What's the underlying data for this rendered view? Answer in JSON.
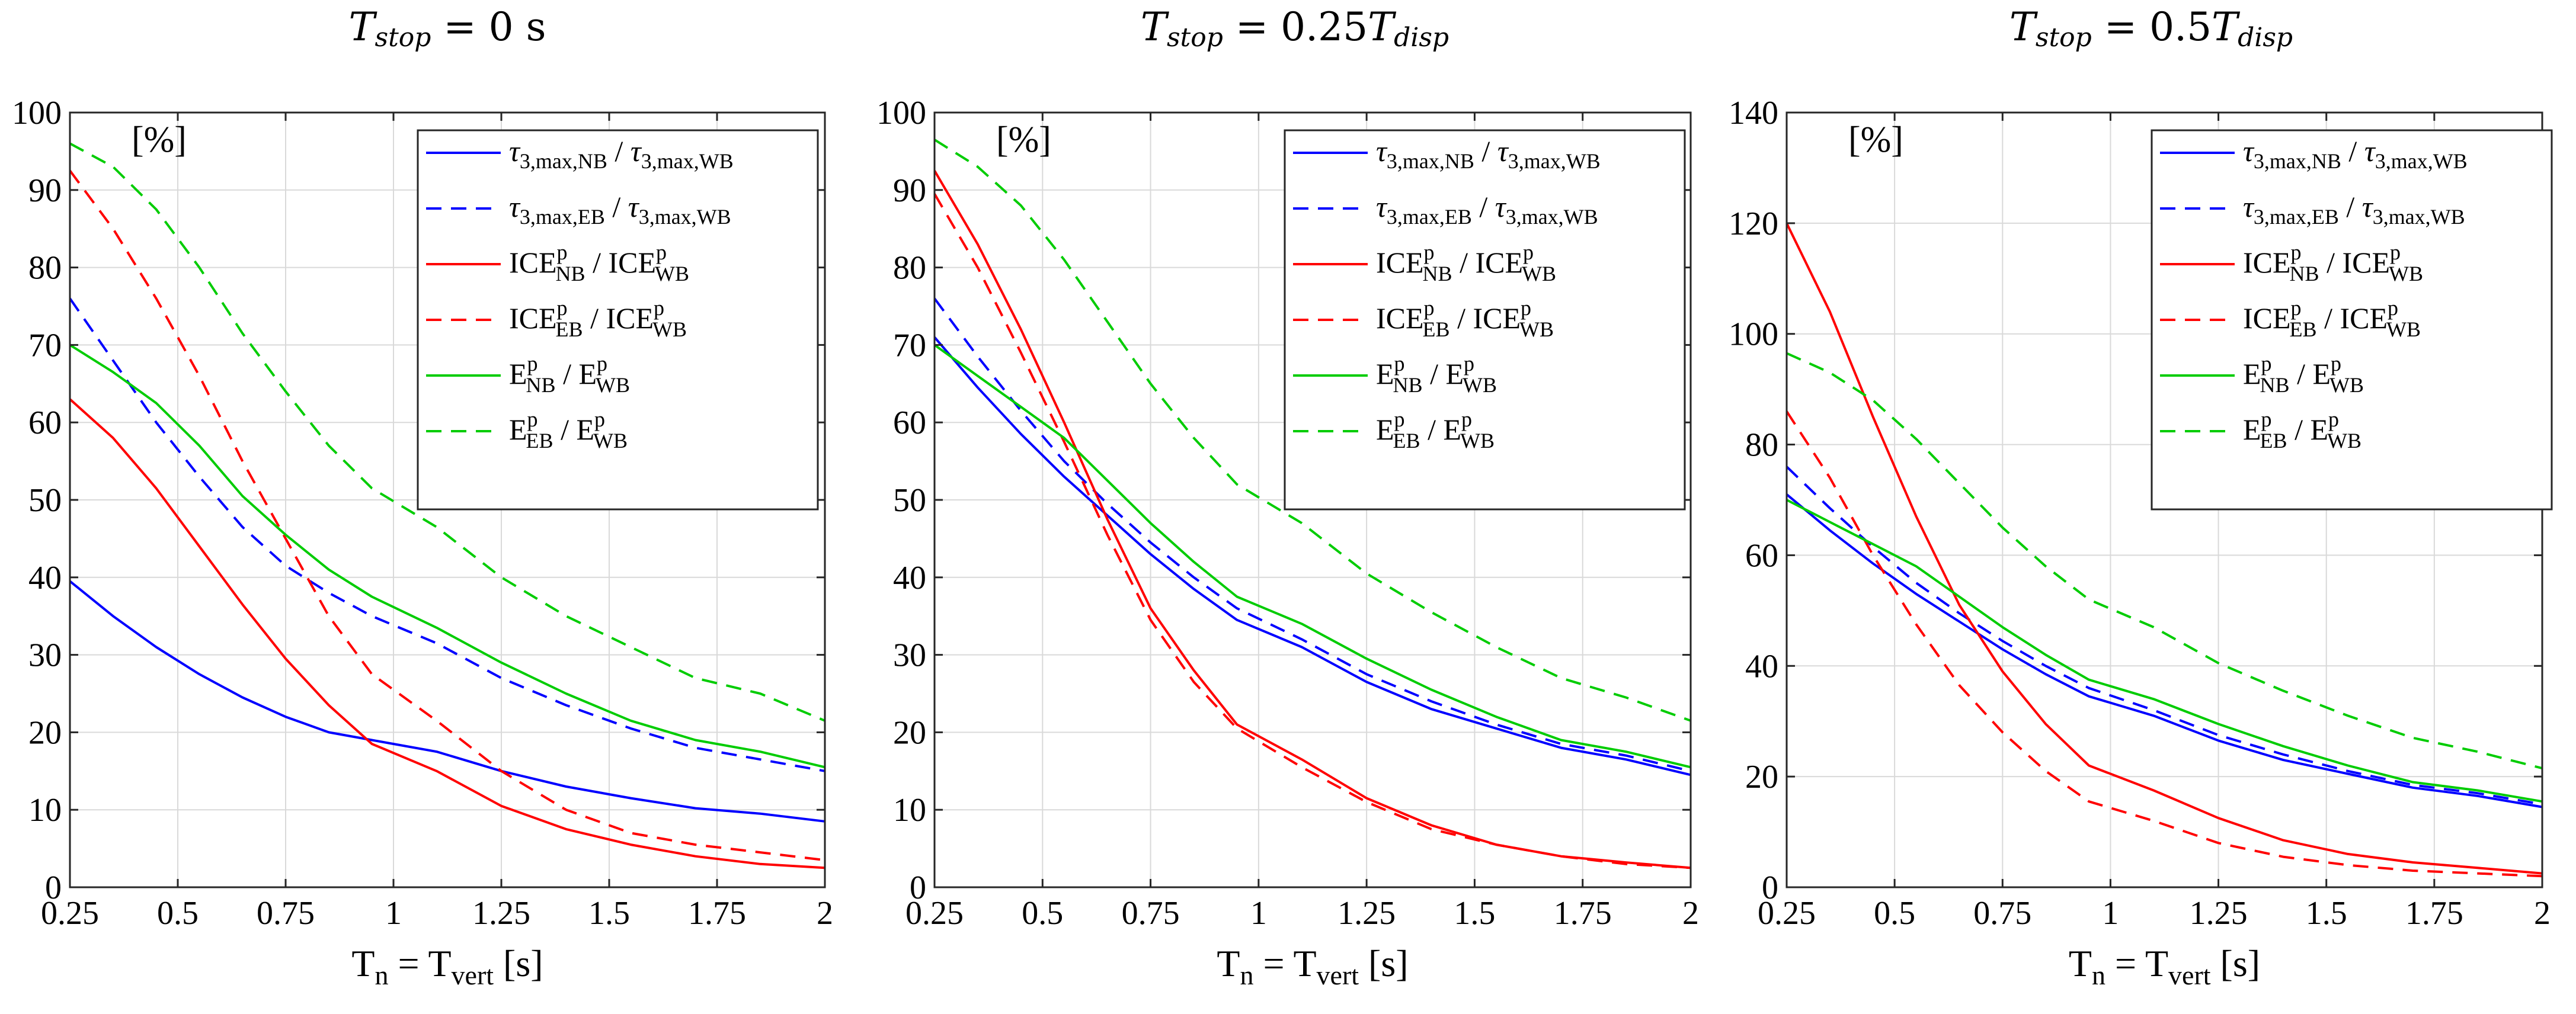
{
  "colors": {
    "blue": "#0000ff",
    "red": "#ff0000",
    "green": "#00cc00",
    "grid": "#d9d9d9",
    "axis": "#262626"
  },
  "panels": [
    {
      "title": {
        "lhs": "T",
        "lhs_sub": "stop",
        "rhs": "= 0 s",
        "rhs_var": "",
        "rhs_sub": ""
      },
      "unit_label": "[%]",
      "xlabel": {
        "t": "T",
        "n": "n",
        "eq": " = T",
        "vert": "vert",
        "unit": " [s]"
      }
    },
    {
      "title": {
        "lhs": "T",
        "lhs_sub": "stop",
        "rhs": "= 0.25",
        "rhs_var": "T",
        "rhs_sub": "disp"
      },
      "unit_label": "[%]",
      "xlabel": {
        "t": "T",
        "n": "n",
        "eq": " = T",
        "vert": "vert",
        "unit": " [s]"
      }
    },
    {
      "title": {
        "lhs": "T",
        "lhs_sub": "stop",
        "rhs": "= 0.5",
        "rhs_var": "T",
        "rhs_sub": "disp"
      },
      "unit_label": "[%]",
      "xlabel": {
        "t": "T",
        "n": "n",
        "eq": " = T",
        "vert": "vert",
        "unit": " [s]"
      }
    }
  ],
  "chart_data": [
    {
      "type": "line",
      "title": "Tstop = 0 s",
      "xlabel": "Tn = Tvert [s]",
      "ylabel": "[%]",
      "xlim": [
        0.25,
        2
      ],
      "ylim": [
        0,
        100
      ],
      "xticks": [
        0.25,
        0.5,
        0.75,
        1,
        1.25,
        1.5,
        1.75,
        2
      ],
      "xtick_labels": [
        "0.25",
        "0.5",
        "0.75",
        "1",
        "1.25",
        "1.5",
        "1.75",
        "2"
      ],
      "yticks": [
        0,
        10,
        20,
        30,
        40,
        50,
        60,
        70,
        80,
        90,
        100
      ],
      "ytick_labels": [
        "0",
        "10",
        "20",
        "30",
        "40",
        "50",
        "60",
        "70",
        "80",
        "90",
        "100"
      ],
      "legend_position": "top-right",
      "x": [
        0.25,
        0.35,
        0.45,
        0.55,
        0.65,
        0.75,
        0.85,
        0.95,
        1.1,
        1.25,
        1.4,
        1.55,
        1.7,
        1.85,
        2.0
      ],
      "series": [
        {
          "name": "τ3,max,NB / τ3,max,WB",
          "color": "#0000ff",
          "dash": "solid",
          "values": [
            39.5,
            35,
            31,
            27.5,
            24.5,
            22,
            20,
            19,
            17.5,
            15,
            13,
            11.5,
            10.2,
            9.5,
            8.5
          ]
        },
        {
          "name": "τ3,max,EB / τ3,max,WB",
          "color": "#0000ff",
          "dash": "dashed",
          "values": [
            76,
            68,
            60,
            53,
            46.5,
            41.5,
            38,
            35,
            31.5,
            27,
            23.5,
            20.5,
            18,
            16.5,
            15
          ]
        },
        {
          "name": "ICEp NB / ICEp WB",
          "color": "#ff0000",
          "dash": "solid",
          "values": [
            63,
            58,
            51.5,
            44,
            36.5,
            29.5,
            23.5,
            18.5,
            15,
            10.5,
            7.5,
            5.5,
            4,
            3,
            2.5
          ]
        },
        {
          "name": "ICEp EB / ICEp WB",
          "color": "#ff0000",
          "dash": "dashed",
          "values": [
            92.5,
            85,
            76,
            66,
            55,
            45,
            35,
            27.5,
            21.5,
            15,
            10,
            7,
            5.5,
            4.5,
            3.5
          ]
        },
        {
          "name": "Ep NB / Ep WB",
          "color": "#00cc00",
          "dash": "solid",
          "values": [
            70,
            66.5,
            62.5,
            57,
            50.5,
            45.5,
            41,
            37.5,
            33.5,
            29,
            25,
            21.5,
            19,
            17.5,
            15.5
          ]
        },
        {
          "name": "Ep EB / Ep WB",
          "color": "#00cc00",
          "dash": "dashed",
          "values": [
            96,
            93,
            87.5,
            80,
            71.5,
            64,
            57,
            51.5,
            46.5,
            40,
            35,
            31,
            27,
            25,
            21.5
          ]
        }
      ],
      "legend_labels": [
        {
          "main": "τ",
          "sub": "3,max,NB",
          "sup": "",
          "sep": " / ",
          "main2": "τ",
          "sub2": "3,max,WB",
          "sup2": ""
        },
        {
          "main": "τ",
          "sub": "3,max,EB",
          "sup": "",
          "sep": " / ",
          "main2": "τ",
          "sub2": "3,max,WB",
          "sup2": ""
        },
        {
          "main": "ICE",
          "sub": "NB",
          "sup": "p",
          "sep": " / ",
          "main2": "ICE",
          "sub2": "WB",
          "sup2": "p"
        },
        {
          "main": "ICE",
          "sub": "EB",
          "sup": "p",
          "sep": " / ",
          "main2": "ICE",
          "sub2": "WB",
          "sup2": "p"
        },
        {
          "main": "E",
          "sub": "NB",
          "sup": "p",
          "sep": " / ",
          "main2": "E",
          "sub2": "WB",
          "sup2": "p"
        },
        {
          "main": "E",
          "sub": "EB",
          "sup": "p",
          "sep": " / ",
          "main2": "E",
          "sub2": "WB",
          "sup2": "p"
        }
      ]
    },
    {
      "type": "line",
      "title": "Tstop = 0.25Tdisp",
      "xlabel": "Tn = Tvert [s]",
      "ylabel": "[%]",
      "xlim": [
        0.25,
        2
      ],
      "ylim": [
        0,
        100
      ],
      "xticks": [
        0.25,
        0.5,
        0.75,
        1,
        1.25,
        1.5,
        1.75,
        2
      ],
      "xtick_labels": [
        "0.25",
        "0.5",
        "0.75",
        "1",
        "1.25",
        "1.5",
        "1.75",
        "2"
      ],
      "yticks": [
        0,
        10,
        20,
        30,
        40,
        50,
        60,
        70,
        80,
        90,
        100
      ],
      "ytick_labels": [
        "0",
        "10",
        "20",
        "30",
        "40",
        "50",
        "60",
        "70",
        "80",
        "90",
        "100"
      ],
      "legend_position": "top-right",
      "x": [
        0.25,
        0.35,
        0.45,
        0.55,
        0.65,
        0.75,
        0.85,
        0.95,
        1.1,
        1.25,
        1.4,
        1.55,
        1.7,
        1.85,
        2.0
      ],
      "series": [
        {
          "name": "τ3,max,NB / τ3,max,WB",
          "color": "#0000ff",
          "dash": "solid",
          "values": [
            71,
            64.5,
            58.5,
            53,
            48,
            43,
            38.5,
            34.5,
            31,
            26.5,
            23,
            20.5,
            18,
            16.5,
            14.5
          ]
        },
        {
          "name": "τ3,max,EB / τ3,max,WB",
          "color": "#0000ff",
          "dash": "dashed",
          "values": [
            76,
            68.5,
            61.5,
            55,
            49.5,
            44.5,
            40,
            36,
            32,
            27.5,
            24,
            21,
            18.5,
            17,
            15
          ]
        },
        {
          "name": "ICEp NB / ICEp WB",
          "color": "#ff0000",
          "dash": "solid",
          "values": [
            92.5,
            83,
            72,
            60,
            47.5,
            36,
            28,
            21,
            16.5,
            11.5,
            8,
            5.5,
            4,
            3.2,
            2.5
          ]
        },
        {
          "name": "ICEp EB / ICEp WB",
          "color": "#ff0000",
          "dash": "dashed",
          "values": [
            89.5,
            80,
            69,
            57.5,
            45.5,
            34.5,
            26.5,
            20.5,
            15.5,
            11,
            7.5,
            5.5,
            4,
            3,
            2.5
          ]
        },
        {
          "name": "Ep NB / Ep WB",
          "color": "#00cc00",
          "dash": "solid",
          "values": [
            70,
            66,
            62,
            58,
            52.5,
            47,
            42,
            37.5,
            34,
            29.5,
            25.5,
            22,
            19,
            17.5,
            15.5
          ]
        },
        {
          "name": "Ep EB / Ep WB",
          "color": "#00cc00",
          "dash": "dashed",
          "values": [
            96.5,
            93,
            88,
            81,
            73,
            65,
            58,
            52,
            47,
            40.5,
            35.5,
            31,
            27,
            24.5,
            21.5
          ]
        }
      ],
      "legend_labels": [
        {
          "main": "τ",
          "sub": "3,max,NB",
          "sup": "",
          "sep": " / ",
          "main2": "τ",
          "sub2": "3,max,WB",
          "sup2": ""
        },
        {
          "main": "τ",
          "sub": "3,max,EB",
          "sup": "",
          "sep": " / ",
          "main2": "τ",
          "sub2": "3,max,WB",
          "sup2": ""
        },
        {
          "main": "ICE",
          "sub": "NB",
          "sup": "p",
          "sep": " / ",
          "main2": "ICE",
          "sub2": "WB",
          "sup2": "p"
        },
        {
          "main": "ICE",
          "sub": "EB",
          "sup": "p",
          "sep": " / ",
          "main2": "ICE",
          "sub2": "WB",
          "sup2": "p"
        },
        {
          "main": "E",
          "sub": "NB",
          "sup": "p",
          "sep": " / ",
          "main2": "E",
          "sub2": "WB",
          "sup2": "p"
        },
        {
          "main": "E",
          "sub": "EB",
          "sup": "p",
          "sep": " / ",
          "main2": "E",
          "sub2": "WB",
          "sup2": "p"
        }
      ]
    },
    {
      "type": "line",
      "title": "Tstop = 0.5Tdisp",
      "xlabel": "Tn = Tvert [s]",
      "ylabel": "[%]",
      "xlim": [
        0.25,
        2
      ],
      "ylim": [
        0,
        140
      ],
      "xticks": [
        0.25,
        0.5,
        0.75,
        1,
        1.25,
        1.5,
        1.75,
        2
      ],
      "xtick_labels": [
        "0.25",
        "0.5",
        "0.75",
        "1",
        "1.25",
        "1.5",
        "1.75",
        "2"
      ],
      "yticks": [
        0,
        20,
        40,
        60,
        80,
        100,
        120,
        140
      ],
      "ytick_labels": [
        "0",
        "20",
        "40",
        "60",
        "80",
        "100",
        "120",
        "140"
      ],
      "legend_position": "top-right",
      "x": [
        0.25,
        0.35,
        0.45,
        0.55,
        0.65,
        0.75,
        0.85,
        0.95,
        1.1,
        1.25,
        1.4,
        1.55,
        1.7,
        1.85,
        2.0
      ],
      "series": [
        {
          "name": "τ3,max,NB / τ3,max,WB",
          "color": "#0000ff",
          "dash": "solid",
          "values": [
            71,
            64.5,
            58.5,
            53,
            48,
            43,
            38.5,
            34.5,
            31,
            26.5,
            23,
            20.5,
            18,
            16.5,
            14.5
          ]
        },
        {
          "name": "τ3,max,EB / τ3,max,WB",
          "color": "#0000ff",
          "dash": "dashed",
          "values": [
            76,
            68.5,
            61.5,
            55,
            49.5,
            44.5,
            40,
            36,
            32,
            27.5,
            24,
            21,
            18.5,
            17,
            15
          ]
        },
        {
          "name": "ICEp NB / ICEp WB",
          "color": "#ff0000",
          "dash": "solid",
          "values": [
            120,
            104,
            85,
            67,
            51,
            39,
            29.5,
            22,
            17.5,
            12.5,
            8.5,
            6,
            4.5,
            3.5,
            2.5
          ]
        },
        {
          "name": "ICEp EB / ICEp WB",
          "color": "#ff0000",
          "dash": "dashed",
          "values": [
            86,
            74,
            60,
            47.5,
            36.5,
            28,
            21,
            15.5,
            12,
            8,
            5.5,
            4,
            3,
            2.5,
            2
          ]
        },
        {
          "name": "Ep NB / Ep WB",
          "color": "#00cc00",
          "dash": "solid",
          "values": [
            70,
            66,
            62,
            58,
            52.5,
            47,
            42,
            37.5,
            34,
            29.5,
            25.5,
            22,
            19,
            17.5,
            15.5
          ]
        },
        {
          "name": "Ep EB / Ep WB",
          "color": "#00cc00",
          "dash": "dashed",
          "values": [
            96.5,
            93,
            88,
            81,
            73,
            65,
            58,
            52,
            47,
            40.5,
            35.5,
            31,
            27,
            24.5,
            21.5
          ]
        }
      ],
      "legend_labels": [
        {
          "main": "τ",
          "sub": "3,max,NB",
          "sup": "",
          "sep": " / ",
          "main2": "τ",
          "sub2": "3,max,WB",
          "sup2": ""
        },
        {
          "main": "τ",
          "sub": "3,max,EB",
          "sup": "",
          "sep": " / ",
          "main2": "τ",
          "sub2": "3,max,WB",
          "sup2": ""
        },
        {
          "main": "ICE",
          "sub": "NB",
          "sup": "p",
          "sep": " / ",
          "main2": "ICE",
          "sub2": "WB",
          "sup2": "p"
        },
        {
          "main": "ICE",
          "sub": "EB",
          "sup": "p",
          "sep": " / ",
          "main2": "ICE",
          "sub2": "WB",
          "sup2": "p"
        },
        {
          "main": "E",
          "sub": "NB",
          "sup": "p",
          "sep": " / ",
          "main2": "E",
          "sub2": "WB",
          "sup2": "p"
        },
        {
          "main": "E",
          "sub": "EB",
          "sup": "p",
          "sep": " / ",
          "main2": "E",
          "sub2": "WB",
          "sup2": "p"
        }
      ]
    }
  ]
}
